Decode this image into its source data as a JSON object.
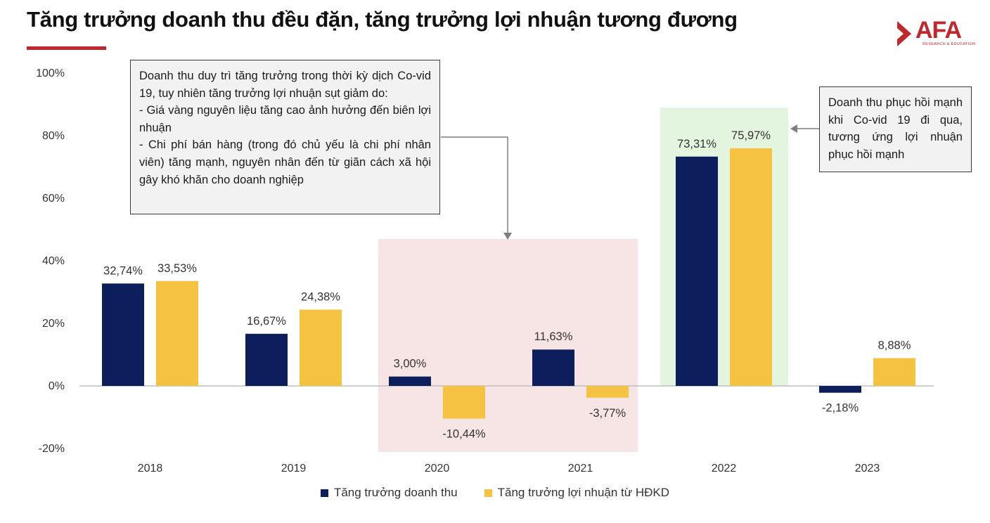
{
  "title": "Tăng trưởng doanh thu đều đặn, tăng trưởng lợi nhuận tương đương",
  "logo": {
    "name": "AFA",
    "tagline": "RESEARCH & EDUCATION"
  },
  "colors": {
    "revenue": "#0c1f5c",
    "profit": "#f5c242",
    "accent": "#c0282d",
    "covid_band": "#f7e4e4",
    "recovery_band": "#e3f5de"
  },
  "callouts": {
    "covid": [
      "Doanh thu duy trì tăng trưởng trong thời kỳ dịch Co-vid 19, tuy nhiên tăng trưởng lợi nhuận sụt giảm do:",
      "- Giá vàng nguyên liệu tăng cao ảnh hưởng đến biên lợi nhuận",
      "- Chi phí bán hàng (trong đó chủ yếu là chi phí nhân viên) tăng mạnh, nguyên nhân đến từ giãn cách xã hội gây khó khăn cho doanh nghiệp"
    ],
    "recovery": "Doanh thu phục hồi mạnh khi Co-vid 19 đi qua, tương ứng lợi nhuận phục hồi mạnh"
  },
  "chart_data": {
    "type": "bar",
    "categories": [
      "2018",
      "2019",
      "2020",
      "2021",
      "2022",
      "2023"
    ],
    "series": [
      {
        "name": "Tăng trưởng doanh thu",
        "values": [
          32.74,
          16.67,
          3.0,
          11.63,
          73.31,
          -2.18
        ],
        "labels": [
          "32,74%",
          "16,67%",
          "3,00%",
          "11,63%",
          "73,31%",
          "-2,18%"
        ]
      },
      {
        "name": "Tăng trưởng lợi nhuận từ HĐKD",
        "values": [
          33.53,
          24.38,
          -10.44,
          -3.77,
          75.97,
          8.88
        ],
        "labels": [
          "33,53%",
          "24,38%",
          "-10,44%",
          "-3,77%",
          "75,97%",
          "8,88%"
        ]
      }
    ],
    "yticks": [
      100,
      80,
      60,
      40,
      20,
      0,
      -20
    ],
    "ytick_labels": [
      "100%",
      "80%",
      "60%",
      "40%",
      "20%",
      "0%",
      "-20%"
    ],
    "ylim": [
      -20,
      100
    ],
    "grid": false,
    "legend": "bottom",
    "highlights": [
      {
        "categories": [
          "2020",
          "2021"
        ],
        "meaning": "covid"
      },
      {
        "categories": [
          "2022"
        ],
        "meaning": "recovery"
      }
    ]
  }
}
